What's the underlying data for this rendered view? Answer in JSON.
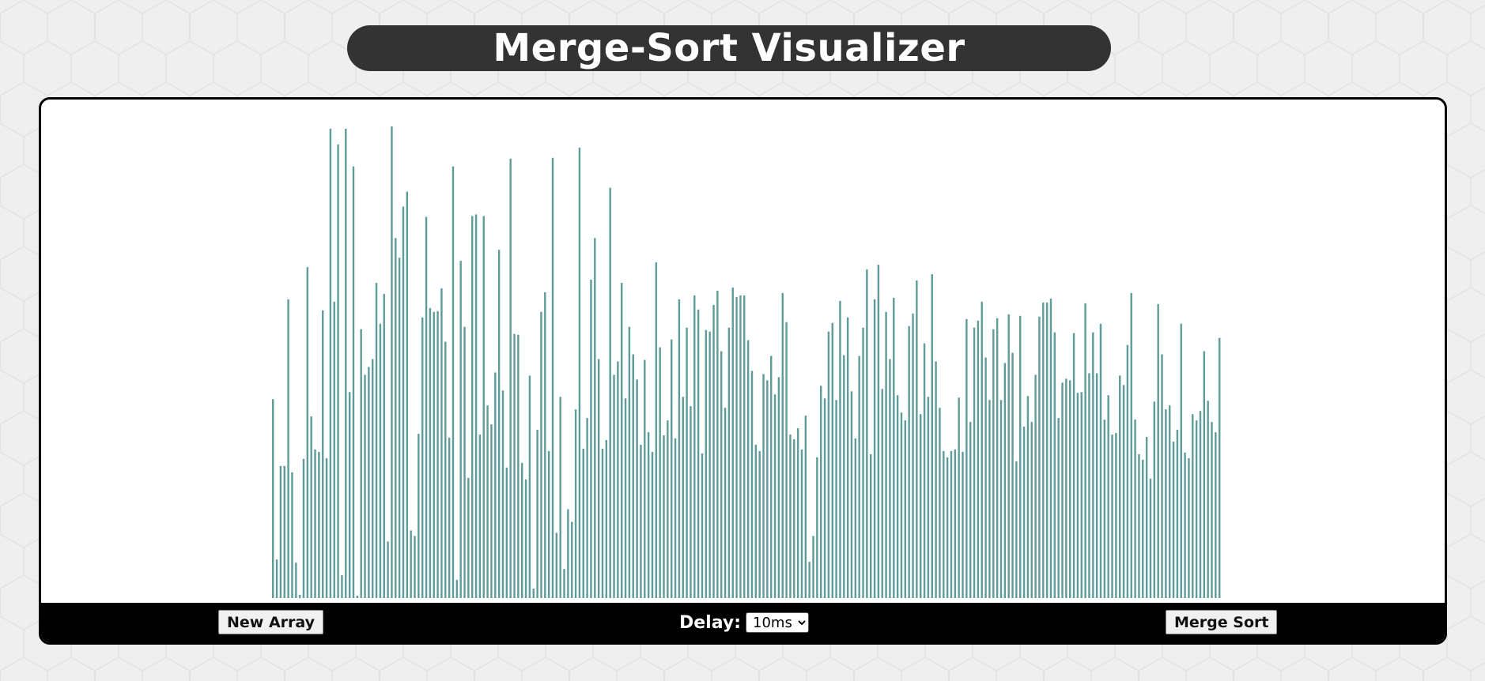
{
  "title": "Merge-Sort Visualizer",
  "controls": {
    "new_array_label": "New Array",
    "delay_label": "Delay:",
    "delay_selected": "10ms",
    "merge_sort_label": "Merge Sort"
  },
  "colors": {
    "bar": "#5f9c99",
    "background": "#efefef",
    "title_bg": "#333333",
    "toolbar_bg": "#000000"
  },
  "array": {
    "max_value": 600,
    "values": [
      253,
      49,
      168,
      168,
      380,
      160,
      45,
      4,
      177,
      421,
      231,
      189,
      186,
      366,
      178,
      597,
      377,
      577,
      29,
      597,
      262,
      549,
      3,
      342,
      284,
      294,
      304,
      401,
      349,
      387,
      72,
      600,
      458,
      433,
      498,
      517,
      86,
      79,
      209,
      357,
      485,
      369,
      364,
      365,
      394,
      326,
      204,
      549,
      23,
      429,
      345,
      153,
      486,
      488,
      208,
      486,
      245,
      221,
      287,
      443,
      264,
      166,
      559,
      336,
      335,
      172,
      151,
      283,
      12,
      214,
      364,
      389,
      187,
      560,
      83,
      256,
      37,
      113,
      97,
      240,
      573,
      190,
      229,
      405,
      458,
      304,
      190,
      201,
      522,
      284,
      301,
      401,
      254,
      345,
      310,
      278,
      195,
      303,
      211,
      186,
      427,
      319,
      207,
      226,
      329,
      203,
      380,
      256,
      344,
      244,
      385,
      367,
      184,
      341,
      339,
      373,
      391,
      314,
      242,
      344,
      395,
      383,
      385,
      385,
      328,
      289,
      195,
      187,
      285,
      277,
      308,
      259,
      281,
      388,
      351,
      208,
      202,
      216,
      189,
      232,
      46,
      79,
      179,
      270,
      254,
      339,
      350,
      252,
      378,
      309,
      357,
      263,
      203,
      308,
      344,
      418,
      183,
      380,
      424,
      266,
      364,
      304,
      382,
      258,
      236,
      226,
      346,
      362,
      404,
      234,
      324,
      256,
      412,
      301,
      242,
      187,
      179,
      187,
      189,
      255,
      186,
      355,
      224,
      344,
      353,
      377,
      306,
      252,
      342,
      356,
      252,
      299,
      361,
      312,
      174,
      359,
      218,
      257,
      224,
      284,
      358,
      376,
      376,
      381,
      338,
      229,
      274,
      279,
      277,
      337,
      261,
      262,
      375,
      286,
      338,
      286,
      349,
      227,
      258,
      208,
      210,
      283,
      271,
      322,
      388,
      227,
      183,
      176,
      205,
      152,
      250,
      374,
      310,
      240,
      245,
      199,
      214,
      349,
      185,
      178,
      234,
      226,
      238,
      314,
      251,
      224,
      211,
      331
    ]
  }
}
